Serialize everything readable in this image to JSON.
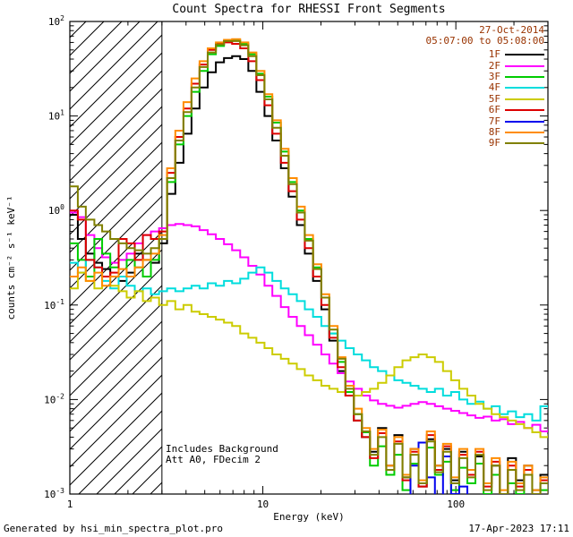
{
  "legend": {
    "date": "27-Oct-2014",
    "time_range": "05:07:00 to 05:08:00",
    "text_color": "#993300"
  },
  "annotations": {
    "note_line1": "Includes Background",
    "note_line2": "Att A0, FDecim 2"
  },
  "footer": {
    "left": "Generated by hsi_min_spectra_plot.pro",
    "right": "17-Apr-2023 17:11"
  },
  "chart_data": {
    "type": "line",
    "scale": "log-log",
    "title": "Count Spectra for RHESSI Front Segments",
    "xlabel": "Energy (keV)",
    "ylabel": "counts cm⁻² s⁻¹ keV⁻¹",
    "xlim": [
      1,
      300
    ],
    "ylim": [
      0.001,
      100
    ],
    "x_ticks": [
      1,
      10,
      100
    ],
    "y_tick_exponents": [
      -3,
      -2,
      -1,
      0,
      1,
      2
    ],
    "hatch_region_kev": [
      1,
      3
    ],
    "energies_kev": [
      1.0,
      1.1,
      1.21,
      1.34,
      1.47,
      1.62,
      1.79,
      1.97,
      2.17,
      2.39,
      2.63,
      2.9,
      3.19,
      3.52,
      3.88,
      4.27,
      4.7,
      5.18,
      5.71,
      6.29,
      6.93,
      7.63,
      8.41,
      9.26,
      10.2,
      11.2,
      12.4,
      13.6,
      15.0,
      16.5,
      18.2,
      20.1,
      22.1,
      24.4,
      26.8,
      29.6,
      32.6,
      35.9,
      39.5,
      43.6,
      48.0,
      52.9,
      58.2,
      64.1,
      70.7,
      77.9,
      85.8,
      94.5,
      104.1,
      114.7,
      126.3,
      139.2,
      153.3,
      168.9,
      186.1,
      205.0,
      225.8,
      248.8,
      274.1,
      302.0
    ],
    "series": [
      {
        "name": "1F",
        "color": "#000000",
        "values": [
          0.9,
          0.5,
          0.35,
          0.28,
          0.24,
          0.2,
          0.18,
          0.22,
          0.35,
          0.3,
          0.28,
          0.45,
          1.5,
          3.2,
          6.5,
          12,
          20,
          29,
          37,
          41,
          43,
          40,
          30,
          18,
          10,
          5.5,
          2.8,
          1.4,
          0.7,
          0.35,
          0.18,
          0.09,
          0.042,
          0.02,
          0.011,
          0.006,
          0.004,
          0.0028,
          0.005,
          0.002,
          0.0042,
          0.0015,
          0.003,
          0.0012,
          0.0038,
          0.002,
          0.003,
          0.0014,
          0.0028,
          0.0018,
          0.0025,
          0.0013,
          0.002,
          0.001,
          0.0024,
          0.0014,
          0.002,
          0.0011,
          0.0016,
          0.0012
        ]
      },
      {
        "name": "2F",
        "color": "#ff00ff",
        "values": [
          0.95,
          0.85,
          0.55,
          0.4,
          0.32,
          0.28,
          0.3,
          0.35,
          0.45,
          0.55,
          0.6,
          0.65,
          0.7,
          0.72,
          0.7,
          0.68,
          0.62,
          0.56,
          0.5,
          0.44,
          0.38,
          0.32,
          0.26,
          0.21,
          0.16,
          0.125,
          0.095,
          0.075,
          0.06,
          0.048,
          0.038,
          0.03,
          0.024,
          0.019,
          0.0155,
          0.013,
          0.011,
          0.0098,
          0.009,
          0.0086,
          0.0082,
          0.0086,
          0.009,
          0.0094,
          0.009,
          0.0085,
          0.008,
          0.0076,
          0.0072,
          0.0068,
          0.0064,
          0.0066,
          0.006,
          0.0062,
          0.0055,
          0.0058,
          0.005,
          0.0054,
          0.0046,
          0.005
        ]
      },
      {
        "name": "3F",
        "color": "#00cc00",
        "values": [
          0.45,
          0.3,
          0.2,
          0.5,
          0.35,
          0.25,
          0.2,
          0.3,
          0.25,
          0.2,
          0.3,
          0.5,
          2.0,
          5.0,
          10,
          18,
          30,
          45,
          55,
          62,
          63,
          58,
          45,
          28,
          16,
          8.5,
          4.2,
          2.0,
          1.0,
          0.5,
          0.25,
          0.12,
          0.05,
          0.025,
          0.012,
          0.007,
          0.0045,
          0.002,
          0.0032,
          0.0016,
          0.0026,
          0.0011,
          0.0021,
          0.0013,
          0.0031,
          0.0016,
          0.0022,
          0.0011,
          0.0019,
          0.0013,
          0.0021,
          0.001,
          0.0016,
          0.0009,
          0.0013,
          0.001,
          0.0016,
          0.0008,
          0.0011,
          0.0009
        ]
      },
      {
        "name": "4F",
        "color": "#00dddd",
        "values": [
          0.28,
          0.22,
          0.3,
          0.25,
          0.18,
          0.15,
          0.2,
          0.16,
          0.14,
          0.15,
          0.13,
          0.14,
          0.15,
          0.14,
          0.15,
          0.16,
          0.15,
          0.17,
          0.16,
          0.18,
          0.17,
          0.19,
          0.22,
          0.25,
          0.22,
          0.18,
          0.15,
          0.13,
          0.11,
          0.09,
          0.075,
          0.06,
          0.05,
          0.042,
          0.035,
          0.03,
          0.026,
          0.022,
          0.02,
          0.018,
          0.016,
          0.015,
          0.014,
          0.013,
          0.012,
          0.013,
          0.011,
          0.012,
          0.01,
          0.009,
          0.0095,
          0.008,
          0.0085,
          0.007,
          0.0075,
          0.0065,
          0.007,
          0.006,
          0.0085,
          0.008
        ]
      },
      {
        "name": "5F",
        "color": "#cccc00",
        "values": [
          0.15,
          0.22,
          0.18,
          0.15,
          0.2,
          0.16,
          0.14,
          0.12,
          0.14,
          0.11,
          0.12,
          0.1,
          0.11,
          0.09,
          0.1,
          0.085,
          0.08,
          0.075,
          0.07,
          0.065,
          0.06,
          0.05,
          0.045,
          0.04,
          0.035,
          0.03,
          0.027,
          0.024,
          0.021,
          0.018,
          0.016,
          0.014,
          0.013,
          0.012,
          0.011,
          0.011,
          0.012,
          0.013,
          0.015,
          0.018,
          0.022,
          0.026,
          0.028,
          0.03,
          0.028,
          0.025,
          0.02,
          0.016,
          0.013,
          0.011,
          0.009,
          0.008,
          0.007,
          0.0065,
          0.006,
          0.0055,
          0.005,
          0.0045,
          0.004,
          0.0042
        ]
      },
      {
        "name": "6F",
        "color": "#dd0000",
        "values": [
          1.0,
          0.8,
          0.3,
          0.25,
          0.2,
          0.22,
          0.5,
          0.45,
          0.3,
          0.55,
          0.5,
          0.6,
          2.5,
          6.0,
          12,
          22,
          35,
          50,
          58,
          60,
          58,
          52,
          38,
          24,
          13,
          6.5,
          3.2,
          1.6,
          0.8,
          0.4,
          0.2,
          0.1,
          0.045,
          0.022,
          0.011,
          0.006,
          0.004,
          0.0024,
          0.0044,
          0.0018,
          0.0036,
          0.0014,
          0.0028,
          0.0012,
          0.0042,
          0.0018,
          0.0032,
          0.0013,
          0.0026,
          0.0016,
          0.0028,
          0.0012,
          0.0022,
          0.001,
          0.002,
          0.0012,
          0.0018,
          0.001,
          0.0014,
          0.001
        ]
      },
      {
        "name": "7F",
        "color": "#0000ee",
        "values": [
          0.0004,
          0.0004,
          0.0004,
          0.0004,
          0.0004,
          0.0004,
          0.0004,
          0.0004,
          0.0004,
          0.0004,
          0.0004,
          0.0004,
          0.0004,
          0.0004,
          0.0004,
          0.0004,
          0.0004,
          0.0004,
          0.0004,
          0.0004,
          0.0004,
          0.0004,
          0.0004,
          0.0004,
          0.0004,
          0.0004,
          0.0004,
          0.0004,
          0.0004,
          0.0004,
          0.0004,
          0.0004,
          0.0004,
          0.0004,
          0.0004,
          0.0004,
          0.0004,
          0.0004,
          0.0004,
          0.0004,
          0.0004,
          0.0008,
          0.002,
          0.0035,
          0.0015,
          0.0004,
          0.0025,
          0.001,
          0.0012,
          0.0004,
          0.0004,
          0.0004,
          0.0004,
          0.0004,
          0.0004,
          0.0004,
          0.0004,
          0.0004,
          0.0004,
          0.0004
        ]
      },
      {
        "name": "8F",
        "color": "#ff8c00",
        "values": [
          0.2,
          0.25,
          0.18,
          0.22,
          0.16,
          0.2,
          0.24,
          0.2,
          0.25,
          0.3,
          0.35,
          0.55,
          2.8,
          7.0,
          14,
          25,
          38,
          52,
          60,
          64,
          65,
          60,
          47,
          30,
          17,
          9.0,
          4.5,
          2.2,
          1.1,
          0.55,
          0.27,
          0.13,
          0.06,
          0.028,
          0.014,
          0.008,
          0.005,
          0.003,
          0.0048,
          0.002,
          0.004,
          0.0016,
          0.003,
          0.0014,
          0.0046,
          0.002,
          0.0034,
          0.0015,
          0.003,
          0.0018,
          0.003,
          0.0013,
          0.0024,
          0.0011,
          0.0022,
          0.0013,
          0.002,
          0.0011,
          0.0015,
          0.0011
        ]
      },
      {
        "name": "9F",
        "color": "#808000",
        "values": [
          1.8,
          1.1,
          0.8,
          0.7,
          0.6,
          0.5,
          0.45,
          0.4,
          0.38,
          0.35,
          0.4,
          0.5,
          2.2,
          5.5,
          11,
          20,
          33,
          47,
          57,
          62,
          62,
          56,
          43,
          27,
          15,
          7.5,
          3.8,
          1.9,
          0.95,
          0.48,
          0.24,
          0.12,
          0.055,
          0.027,
          0.013,
          0.007,
          0.0046,
          0.0026,
          0.004,
          0.0018,
          0.0034,
          0.0015,
          0.0026,
          0.0013,
          0.0036,
          0.0017,
          0.0028,
          0.0013,
          0.0024,
          0.0015,
          0.0026,
          0.0011,
          0.002,
          0.001,
          0.0018,
          0.0011,
          0.0016,
          0.001,
          0.0013,
          0.001
        ]
      }
    ]
  }
}
